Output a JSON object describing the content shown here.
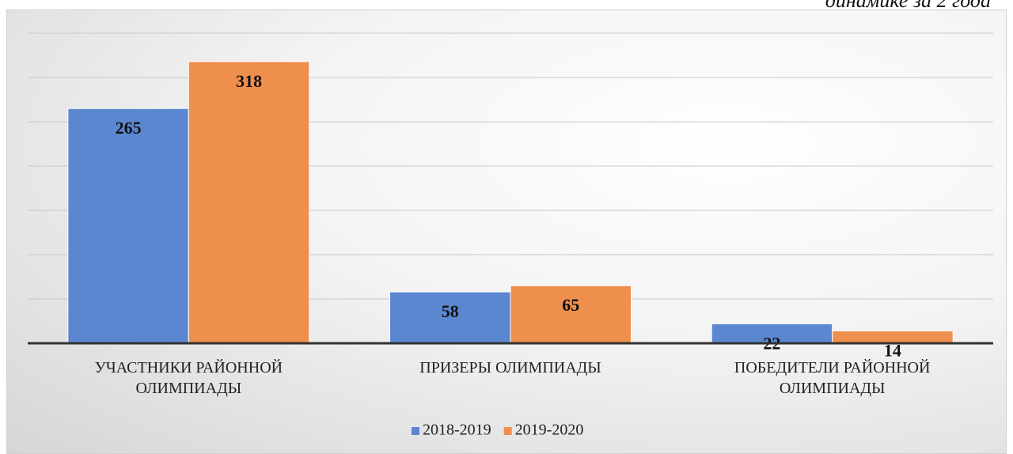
{
  "chart_data": {
    "type": "bar",
    "caption": "динамике за 2 года",
    "categories": [
      "УЧАСТНИКИ РАЙОННОЙ ОЛИМПИАДЫ",
      "ПРИЗЕРЫ ОЛИМПИАДЫ",
      "ПОБЕДИТЕЛИ РАЙОННОЙ ОЛИМПИАДЫ"
    ],
    "series": [
      {
        "name": "2018-2019",
        "color": "#5b87d1",
        "values": [
          265,
          58,
          22
        ]
      },
      {
        "name": "2019-2020",
        "color": "#ef8f4d",
        "values": [
          318,
          65,
          14
        ]
      }
    ],
    "ylim": [
      0,
      350
    ],
    "yticks": [
      0,
      50,
      100,
      150,
      200,
      250,
      300,
      350
    ],
    "grid": true,
    "legend": "bottom"
  }
}
